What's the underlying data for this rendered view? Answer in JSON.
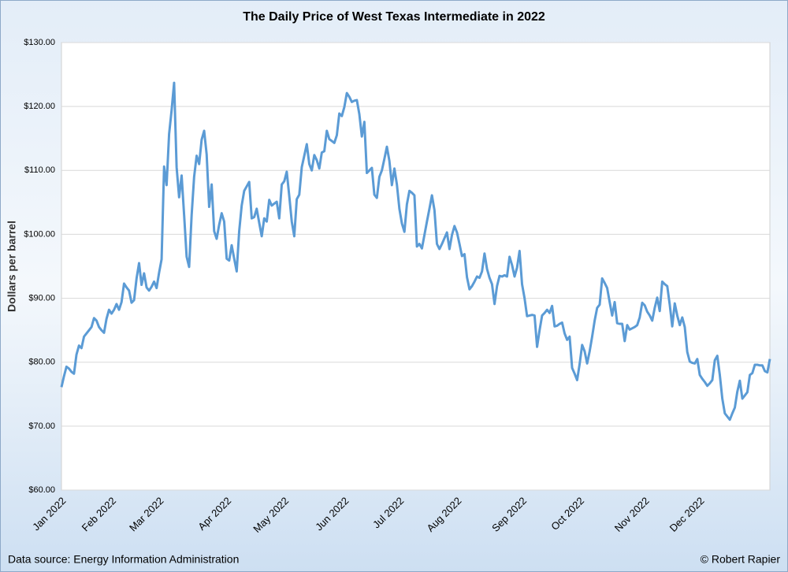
{
  "chart_data": {
    "type": "line",
    "title": "The Daily Price of West Texas Intermediate in 2022",
    "y_label": "Dollars per barrel",
    "source": "Data source: Energy Information Administration",
    "credit": "© Robert Rapier",
    "color": "#5b9bd5",
    "grid": true,
    "ylim": [
      60,
      130
    ],
    "yticks": [
      {
        "value": 60,
        "label": "$60.00"
      },
      {
        "value": 70,
        "label": "$70.00"
      },
      {
        "value": 80,
        "label": "$80.00"
      },
      {
        "value": 90,
        "label": "$90.00"
      },
      {
        "value": 100,
        "label": "$100.00"
      },
      {
        "value": 110,
        "label": "$110.00"
      },
      {
        "value": 120,
        "label": "$120.00"
      },
      {
        "value": 130,
        "label": "$130.00"
      }
    ],
    "categories": [
      "Jan 2022",
      null,
      null,
      null,
      null,
      null,
      null,
      null,
      null,
      null,
      null,
      null,
      null,
      null,
      null,
      null,
      null,
      null,
      null,
      null,
      "Feb 2022",
      null,
      null,
      null,
      null,
      null,
      null,
      null,
      null,
      null,
      null,
      null,
      null,
      null,
      null,
      null,
      null,
      null,
      null,
      "Mar 2022",
      null,
      null,
      null,
      null,
      null,
      null,
      null,
      null,
      null,
      null,
      null,
      null,
      null,
      null,
      null,
      null,
      null,
      null,
      null,
      null,
      null,
      null,
      null,
      null,
      null,
      null,
      "Apr 2022",
      null,
      null,
      null,
      null,
      null,
      null,
      null,
      null,
      null,
      null,
      null,
      null,
      null,
      null,
      null,
      null,
      null,
      null,
      null,
      null,
      null,
      null,
      "May 2022",
      null,
      null,
      null,
      null,
      null,
      null,
      null,
      null,
      null,
      null,
      null,
      null,
      null,
      null,
      null,
      null,
      null,
      null,
      null,
      null,
      null,
      null,
      null,
      "Jun 2022",
      null,
      null,
      null,
      null,
      null,
      null,
      null,
      null,
      null,
      null,
      null,
      null,
      null,
      null,
      null,
      null,
      null,
      null,
      null,
      null,
      null,
      "Jul 2022",
      null,
      null,
      null,
      null,
      null,
      null,
      null,
      null,
      null,
      null,
      null,
      null,
      null,
      null,
      null,
      null,
      null,
      null,
      null,
      null,
      null,
      null,
      "Aug 2022",
      null,
      null,
      null,
      null,
      null,
      null,
      null,
      null,
      null,
      null,
      null,
      null,
      null,
      null,
      null,
      null,
      null,
      null,
      null,
      null,
      null,
      null,
      null,
      null,
      null,
      "Sep 2022",
      null,
      null,
      null,
      null,
      null,
      null,
      null,
      null,
      null,
      null,
      null,
      null,
      null,
      null,
      null,
      null,
      null,
      null,
      null,
      null,
      null,
      null,
      "Oct 2022",
      null,
      null,
      null,
      null,
      null,
      null,
      null,
      null,
      null,
      null,
      null,
      null,
      null,
      null,
      null,
      null,
      null,
      null,
      null,
      null,
      null,
      null,
      null,
      null,
      null,
      "Nov 2022",
      null,
      null,
      null,
      null,
      null,
      null,
      null,
      null,
      null,
      null,
      null,
      null,
      null,
      null,
      null,
      null,
      null,
      null,
      null,
      null,
      null,
      "Dec 2022",
      null,
      null,
      null,
      null,
      null,
      null,
      null,
      null,
      null,
      null,
      null,
      null,
      null,
      null,
      null,
      null,
      null,
      null,
      null,
      null,
      null,
      null,
      null,
      null,
      null,
      null,
      null,
      null
    ],
    "values": [
      76.1,
      77.8,
      79.3,
      79.0,
      78.5,
      78.2,
      81.2,
      82.6,
      82.2,
      84.0,
      84.5,
      85.0,
      85.5,
      86.9,
      86.5,
      85.5,
      85.0,
      84.6,
      86.8,
      88.2,
      87.6,
      88.2,
      89.1,
      88.2,
      89.4,
      92.3,
      91.7,
      91.2,
      89.3,
      89.7,
      93.1,
      95.5,
      92.1,
      93.9,
      91.7,
      91.2,
      91.8,
      92.6,
      91.6,
      94.0,
      96.1,
      110.6,
      107.7,
      115.7,
      119.4,
      123.7,
      110.5,
      105.8,
      109.2,
      103.0,
      96.5,
      94.9,
      103.0,
      109.0,
      112.3,
      111.0,
      114.8,
      116.2,
      112.5,
      104.3,
      107.8,
      100.5,
      99.3,
      101.5,
      103.3,
      102.0,
      96.2,
      95.9,
      98.3,
      96.2,
      94.2,
      100.5,
      104.5,
      106.8,
      107.5,
      108.2,
      102.5,
      102.7,
      104.0,
      101.8,
      99.7,
      102.5,
      102.0,
      105.4,
      104.5,
      104.8,
      105.1,
      102.5,
      107.8,
      108.3,
      109.8,
      106.0,
      102.0,
      99.7,
      105.5,
      106.2,
      110.5,
      112.3,
      114.1,
      111.0,
      110.0,
      112.4,
      111.6,
      110.3,
      112.8,
      113.0,
      116.2,
      114.9,
      114.6,
      114.3,
      115.5,
      118.9,
      118.5,
      119.9,
      122.1,
      121.5,
      120.7,
      120.9,
      121.0,
      118.8,
      115.3,
      117.6,
      109.6,
      110.0,
      110.4,
      106.2,
      105.7,
      109.0,
      110.0,
      111.8,
      113.7,
      111.5,
      107.7,
      110.3,
      107.8,
      104.0,
      101.7,
      100.4,
      104.7,
      106.8,
      106.5,
      106.1,
      98.1,
      98.5,
      97.8,
      99.9,
      102.0,
      104.0,
      106.1,
      103.8,
      98.5,
      97.7,
      98.5,
      99.4,
      100.3,
      97.7,
      99.9,
      101.3,
      100.3,
      98.5,
      96.6,
      96.9,
      93.3,
      91.4,
      91.9,
      92.6,
      93.4,
      93.2,
      94.2,
      97.0,
      94.6,
      93.2,
      92.2,
      89.1,
      91.9,
      93.5,
      93.4,
      93.6,
      93.4,
      96.5,
      95.2,
      93.4,
      94.8,
      97.4,
      92.2,
      90.0,
      87.2,
      87.3,
      87.4,
      87.3,
      82.4,
      85.0,
      87.3,
      87.7,
      88.2,
      87.7,
      88.8,
      85.6,
      85.7,
      86.0,
      86.2,
      84.5,
      83.5,
      84.0,
      79.1,
      78.2,
      77.2,
      79.7,
      82.7,
      81.7,
      79.8,
      81.7,
      84.0,
      86.5,
      88.5,
      89.0,
      93.1,
      92.4,
      91.6,
      89.4,
      87.3,
      89.4,
      86.1,
      86.0,
      86.0,
      83.3,
      85.8,
      85.1,
      85.3,
      85.5,
      85.8,
      87.0,
      89.3,
      88.9,
      87.9,
      87.3,
      86.5,
      88.5,
      90.1,
      88.0,
      92.6,
      92.2,
      91.9,
      89.0,
      85.6,
      89.2,
      87.3,
      85.8,
      87.0,
      85.5,
      81.6,
      80.1,
      79.9,
      79.8,
      80.5,
      78.0,
      77.4,
      76.9,
      76.3,
      76.7,
      77.2,
      80.3,
      81.0,
      78.0,
      74.3,
      72.0,
      71.5,
      71.0,
      72.0,
      72.9,
      75.4,
      77.1,
      74.3,
      74.8,
      75.3,
      78.0,
      78.3,
      79.6,
      79.6,
      79.5,
      79.5,
      78.6,
      78.4,
      80.5
    ]
  }
}
